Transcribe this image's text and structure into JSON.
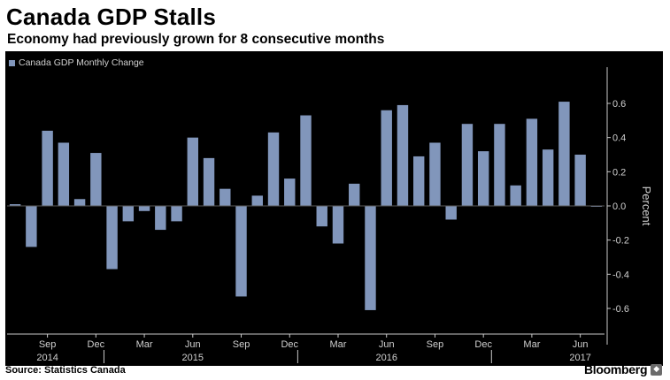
{
  "header": {
    "title": "Canada GDP Stalls",
    "subtitle": "Economy had previously grown for 8 consecutive months"
  },
  "footer": {
    "source": "Source: Statistics Canada",
    "brand": "Bloomberg",
    "brand_icon": "bloomberg-logo-icon"
  },
  "colors": {
    "background": "#000000",
    "bar": "#8196bb",
    "axis": "#c8c8c8",
    "text": "#d0d0d0"
  },
  "chart_data": {
    "type": "bar",
    "legend": [
      "Canada GDP Monthly Change"
    ],
    "legend_position": "top-left",
    "categories": [
      "Jul 2014",
      "Aug 2014",
      "Sep 2014",
      "Oct 2014",
      "Nov 2014",
      "Dec 2014",
      "Jan 2015",
      "Feb 2015",
      "Mar 2015",
      "Apr 2015",
      "May 2015",
      "Jun 2015",
      "Jul 2015",
      "Aug 2015",
      "Sep 2015",
      "Oct 2015",
      "Nov 2015",
      "Dec 2015",
      "Jan 2016",
      "Feb 2016",
      "Mar 2016",
      "Apr 2016",
      "May 2016",
      "Jun 2016",
      "Jul 2016",
      "Aug 2016",
      "Sep 2016",
      "Oct 2016",
      "Nov 2016",
      "Dec 2016",
      "Jan 2017",
      "Feb 2017",
      "Mar 2017",
      "Apr 2017",
      "May 2017",
      "Jun 2017",
      "Jul 2017"
    ],
    "values": [
      0.01,
      -0.24,
      0.44,
      0.37,
      0.04,
      0.31,
      -0.37,
      -0.09,
      -0.03,
      -0.14,
      -0.09,
      0.4,
      0.28,
      0.1,
      -0.53,
      0.06,
      0.43,
      0.16,
      0.53,
      -0.12,
      -0.22,
      0.13,
      -0.61,
      0.56,
      0.59,
      0.29,
      0.37,
      -0.08,
      0.48,
      0.32,
      0.48,
      0.12,
      0.51,
      0.33,
      0.61,
      0.3,
      0.0
    ],
    "x_tick_labels": [
      {
        "index": 2,
        "label": "Sep"
      },
      {
        "index": 5,
        "label": "Dec"
      },
      {
        "index": 8,
        "label": "Mar"
      },
      {
        "index": 11,
        "label": "Jun"
      },
      {
        "index": 14,
        "label": "Sep"
      },
      {
        "index": 17,
        "label": "Dec"
      },
      {
        "index": 20,
        "label": "Mar"
      },
      {
        "index": 23,
        "label": "Jun"
      },
      {
        "index": 26,
        "label": "Sep"
      },
      {
        "index": 29,
        "label": "Dec"
      },
      {
        "index": 32,
        "label": "Mar"
      },
      {
        "index": 35,
        "label": "Jun"
      }
    ],
    "x_year_labels": [
      {
        "index": 2,
        "label": "2014"
      },
      {
        "index": 11,
        "label": "2015"
      },
      {
        "index": 23,
        "label": "2016"
      },
      {
        "index": 35,
        "label": "2017"
      }
    ],
    "year_boundaries": [
      5.5,
      17.5,
      29.5
    ],
    "ylabel": "Percent",
    "ylim": [
      -0.75,
      0.75
    ],
    "y_ticks": [
      0.6,
      0.4,
      0.2,
      0.0,
      -0.2,
      -0.4,
      -0.6
    ],
    "y_tick_labels": [
      "0.6",
      "0.4",
      "0.2",
      "0.0",
      "-0.2",
      "-0.4",
      "-0.6"
    ],
    "grid": false,
    "zero_line": true
  }
}
